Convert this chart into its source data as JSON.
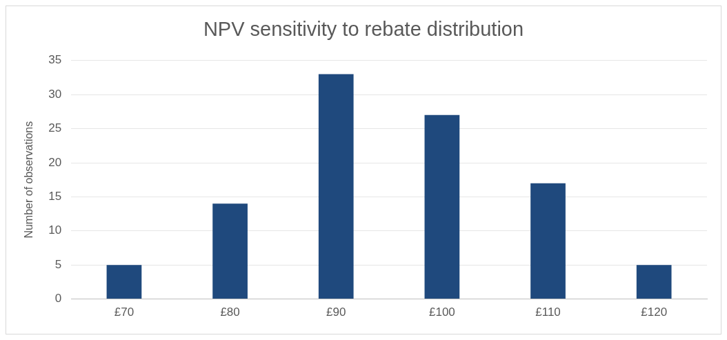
{
  "chart_data": {
    "type": "bar",
    "title": "NPV sensitivity to rebate distribution",
    "ylabel": "Number of observations",
    "categories": [
      "£70",
      "£80",
      "£90",
      "£100",
      "£110",
      "£120"
    ],
    "values": [
      5,
      14,
      33,
      27,
      17,
      5
    ],
    "color": "#1f497d",
    "ylim": [
      0,
      35
    ],
    "yticks": [
      0,
      5,
      10,
      15,
      20,
      25,
      30,
      35
    ],
    "grid": "y",
    "legend": false
  }
}
